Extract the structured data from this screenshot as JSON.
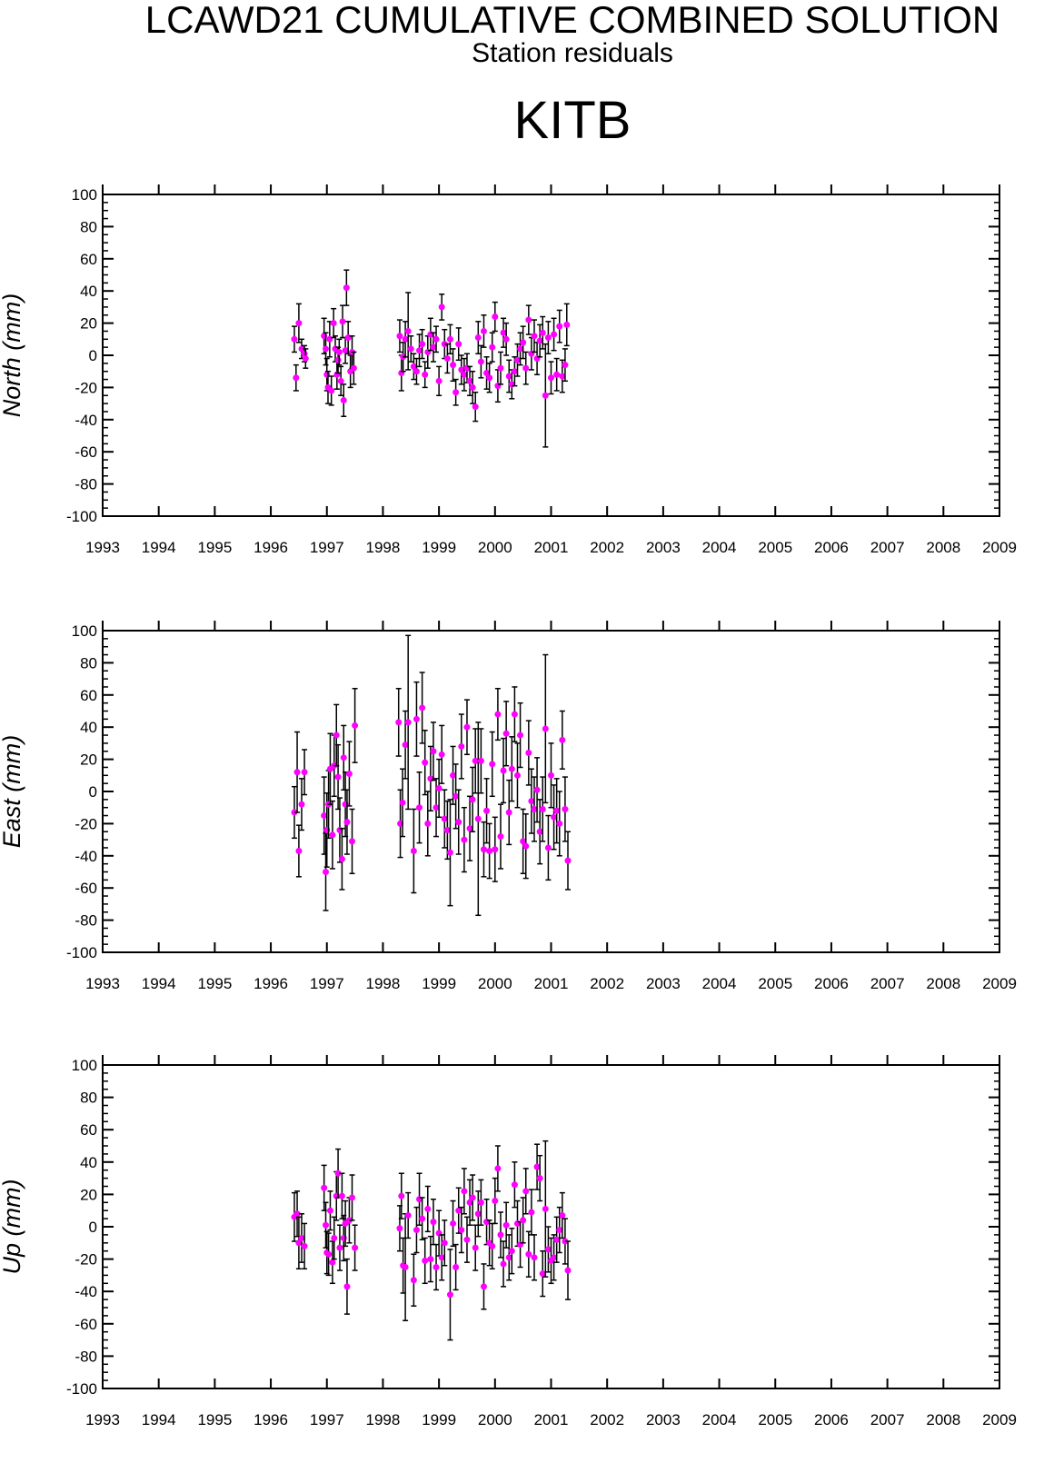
{
  "header": {
    "title": "LCAWD21 CUMULATIVE COMBINED SOLUTION",
    "subtitle": "Station residuals",
    "station": "KITB"
  },
  "colors": {
    "marker": "#ff00ff",
    "errorbar": "#000000",
    "axes": "#000000"
  },
  "chart_data": [
    {
      "type": "scatter",
      "ylabel": "North (mm)",
      "xlim": [
        1993,
        2009
      ],
      "ylim": [
        -100,
        100
      ],
      "x_ticks": [
        "1993",
        "1994",
        "1995",
        "1996",
        "1997",
        "1998",
        "1999",
        "2000",
        "2001",
        "2002",
        "2003",
        "2004",
        "2005",
        "2006",
        "2007",
        "2008",
        "2009"
      ],
      "y_ticks": [
        "100",
        "80",
        "60",
        "40",
        "20",
        "0",
        "-20",
        "-40",
        "-60",
        "-80",
        "-100"
      ],
      "grid": false,
      "error_bars": true,
      "points": [
        [
          1996.42,
          10,
          8
        ],
        [
          1996.45,
          -14,
          8
        ],
        [
          1996.5,
          20,
          12
        ],
        [
          1996.55,
          4,
          6
        ],
        [
          1996.6,
          1,
          5
        ],
        [
          1996.62,
          -2,
          6
        ],
        [
          1996.95,
          12,
          11
        ],
        [
          1996.98,
          4,
          10
        ],
        [
          1997.0,
          -12,
          10
        ],
        [
          1997.02,
          -20,
          10
        ],
        [
          1997.05,
          10,
          11
        ],
        [
          1997.08,
          -22,
          9
        ],
        [
          1997.12,
          20,
          9
        ],
        [
          1997.15,
          4,
          8
        ],
        [
          1997.18,
          -12,
          9
        ],
        [
          1997.2,
          -3,
          8
        ],
        [
          1997.22,
          2,
          8
        ],
        [
          1997.25,
          -16,
          9
        ],
        [
          1997.28,
          21,
          10
        ],
        [
          1997.3,
          -28,
          10
        ],
        [
          1997.33,
          3,
          8
        ],
        [
          1997.35,
          42,
          11
        ],
        [
          1997.38,
          11,
          10
        ],
        [
          1997.42,
          -10,
          10
        ],
        [
          1997.45,
          2,
          10
        ],
        [
          1997.48,
          -8,
          10
        ],
        [
          1998.3,
          12,
          10
        ],
        [
          1998.33,
          -11,
          11
        ],
        [
          1998.36,
          -1,
          9
        ],
        [
          1998.4,
          10,
          11
        ],
        [
          1998.45,
          15,
          24
        ],
        [
          1998.5,
          4,
          8
        ],
        [
          1998.55,
          -7,
          8
        ],
        [
          1998.6,
          -10,
          8
        ],
        [
          1998.65,
          3,
          10
        ],
        [
          1998.7,
          7,
          9
        ],
        [
          1998.75,
          -12,
          8
        ],
        [
          1998.8,
          2,
          10
        ],
        [
          1998.85,
          13,
          10
        ],
        [
          1998.9,
          5,
          9
        ],
        [
          1998.95,
          10,
          8
        ],
        [
          1999.0,
          -16,
          9
        ],
        [
          1999.05,
          30,
          8
        ],
        [
          1999.1,
          7,
          9
        ],
        [
          1999.15,
          -2,
          9
        ],
        [
          1999.2,
          10,
          9
        ],
        [
          1999.25,
          -6,
          10
        ],
        [
          1999.3,
          -23,
          8
        ],
        [
          1999.35,
          7,
          10
        ],
        [
          1999.4,
          -9,
          9
        ],
        [
          1999.45,
          -12,
          10
        ],
        [
          1999.5,
          -8,
          9
        ],
        [
          1999.55,
          -16,
          9
        ],
        [
          1999.6,
          -20,
          10
        ],
        [
          1999.65,
          -32,
          9
        ],
        [
          1999.7,
          11,
          10
        ],
        [
          1999.75,
          -4,
          10
        ],
        [
          1999.8,
          15,
          10
        ],
        [
          1999.85,
          -11,
          10
        ],
        [
          1999.9,
          -14,
          9
        ],
        [
          1999.95,
          5,
          9
        ],
        [
          2000.0,
          24,
          9
        ],
        [
          2000.05,
          -19,
          10
        ],
        [
          2000.1,
          -8,
          10
        ],
        [
          2000.15,
          14,
          9
        ],
        [
          2000.2,
          10,
          10
        ],
        [
          2000.25,
          -13,
          10
        ],
        [
          2000.3,
          -18,
          9
        ],
        [
          2000.35,
          -10,
          9
        ],
        [
          2000.4,
          -3,
          10
        ],
        [
          2000.45,
          4,
          10
        ],
        [
          2000.5,
          8,
          10
        ],
        [
          2000.55,
          -8,
          10
        ],
        [
          2000.6,
          22,
          9
        ],
        [
          2000.65,
          1,
          10
        ],
        [
          2000.7,
          12,
          10
        ],
        [
          2000.75,
          -2,
          10
        ],
        [
          2000.8,
          9,
          10
        ],
        [
          2000.85,
          14,
          10
        ],
        [
          2000.9,
          -25,
          32
        ],
        [
          2000.95,
          11,
          10
        ],
        [
          2001.0,
          -14,
          10
        ],
        [
          2001.05,
          13,
          10
        ],
        [
          2001.1,
          -12,
          10
        ],
        [
          2001.15,
          18,
          10
        ],
        [
          2001.2,
          -13,
          10
        ],
        [
          2001.25,
          -6,
          10
        ],
        [
          2001.28,
          19,
          13
        ]
      ]
    },
    {
      "type": "scatter",
      "ylabel": "East (mm)",
      "xlim": [
        1993,
        2009
      ],
      "ylim": [
        -100,
        100
      ],
      "x_ticks": [
        "1993",
        "1994",
        "1995",
        "1996",
        "1997",
        "1998",
        "1999",
        "2000",
        "2001",
        "2002",
        "2003",
        "2004",
        "2005",
        "2006",
        "2007",
        "2008",
        "2009"
      ],
      "y_ticks": [
        "100",
        "80",
        "60",
        "40",
        "20",
        "0",
        "-20",
        "-40",
        "-60",
        "-80",
        "-100"
      ],
      "grid": false,
      "error_bars": true,
      "points": [
        [
          1996.42,
          -13,
          16
        ],
        [
          1996.47,
          12,
          25
        ],
        [
          1996.5,
          -37,
          16
        ],
        [
          1996.55,
          -8,
          16
        ],
        [
          1996.6,
          12,
          14
        ],
        [
          1996.95,
          -15,
          24
        ],
        [
          1996.98,
          -50,
          24
        ],
        [
          1997.0,
          -24,
          23
        ],
        [
          1997.03,
          -8,
          21
        ],
        [
          1997.06,
          14,
          22
        ],
        [
          1997.1,
          -27,
          21
        ],
        [
          1997.13,
          16,
          19
        ],
        [
          1997.17,
          35,
          19
        ],
        [
          1997.2,
          9,
          20
        ],
        [
          1997.23,
          -24,
          20
        ],
        [
          1997.27,
          -42,
          19
        ],
        [
          1997.3,
          21,
          20
        ],
        [
          1997.33,
          -8,
          20
        ],
        [
          1997.36,
          -19,
          20
        ],
        [
          1997.4,
          11,
          20
        ],
        [
          1997.45,
          -31,
          20
        ],
        [
          1997.5,
          41,
          23
        ],
        [
          1998.28,
          43,
          21
        ],
        [
          1998.31,
          -20,
          21
        ],
        [
          1998.35,
          -7,
          21
        ],
        [
          1998.4,
          29,
          21
        ],
        [
          1998.45,
          43,
          54
        ],
        [
          1998.55,
          -37,
          26
        ],
        [
          1998.6,
          45,
          23
        ],
        [
          1998.65,
          -10,
          22
        ],
        [
          1998.7,
          52,
          22
        ],
        [
          1998.75,
          18,
          20
        ],
        [
          1998.8,
          -20,
          20
        ],
        [
          1998.85,
          8,
          20
        ],
        [
          1998.9,
          25,
          18
        ],
        [
          1998.95,
          -10,
          18
        ],
        [
          1999.0,
          2,
          18
        ],
        [
          1999.05,
          23,
          18
        ],
        [
          1999.1,
          -17,
          18
        ],
        [
          1999.15,
          -24,
          18
        ],
        [
          1999.2,
          -38,
          33
        ],
        [
          1999.25,
          10,
          18
        ],
        [
          1999.3,
          -3,
          20
        ],
        [
          1999.35,
          -19,
          20
        ],
        [
          1999.4,
          28,
          20
        ],
        [
          1999.45,
          -30,
          20
        ],
        [
          1999.5,
          40,
          17
        ],
        [
          1999.55,
          -23,
          20
        ],
        [
          1999.6,
          -5,
          20
        ],
        [
          1999.65,
          19,
          20
        ],
        [
          1999.7,
          -17,
          60
        ],
        [
          1999.75,
          19,
          20
        ],
        [
          1999.8,
          -36,
          17
        ],
        [
          1999.85,
          -12,
          20
        ],
        [
          1999.9,
          -37,
          17
        ],
        [
          1999.95,
          17,
          20
        ],
        [
          2000.0,
          -36,
          20
        ],
        [
          2000.05,
          48,
          16
        ],
        [
          2000.1,
          -28,
          20
        ],
        [
          2000.15,
          13,
          20
        ],
        [
          2000.2,
          36,
          20
        ],
        [
          2000.25,
          -13,
          20
        ],
        [
          2000.3,
          14,
          20
        ],
        [
          2000.35,
          48,
          17
        ],
        [
          2000.4,
          10,
          20
        ],
        [
          2000.45,
          35,
          20
        ],
        [
          2000.5,
          -31,
          20
        ],
        [
          2000.55,
          -34,
          20
        ],
        [
          2000.6,
          24,
          20
        ],
        [
          2000.65,
          -6,
          20
        ],
        [
          2000.7,
          -11,
          20
        ],
        [
          2000.75,
          1,
          20
        ],
        [
          2000.8,
          -25,
          20
        ],
        [
          2000.85,
          -11,
          20
        ],
        [
          2000.9,
          39,
          46
        ],
        [
          2000.95,
          -35,
          20
        ],
        [
          2001.0,
          10,
          20
        ],
        [
          2001.05,
          -16,
          20
        ],
        [
          2001.1,
          -12,
          20
        ],
        [
          2001.15,
          -20,
          20
        ],
        [
          2001.2,
          32,
          18
        ],
        [
          2001.25,
          -11,
          20
        ],
        [
          2001.3,
          -43,
          18
        ]
      ]
    },
    {
      "type": "scatter",
      "ylabel": "Up (mm)",
      "xlim": [
        1993,
        2009
      ],
      "ylim": [
        -100,
        100
      ],
      "x_ticks": [
        "1993",
        "1994",
        "1995",
        "1996",
        "1997",
        "1998",
        "1999",
        "2000",
        "2001",
        "2002",
        "2003",
        "2004",
        "2005",
        "2006",
        "2007",
        "2008",
        "2009"
      ],
      "y_ticks": [
        "100",
        "80",
        "60",
        "40",
        "20",
        "0",
        "-20",
        "-40",
        "-60",
        "-80",
        "-100"
      ],
      "grid": false,
      "error_bars": true,
      "points": [
        [
          1996.42,
          6,
          15
        ],
        [
          1996.47,
          8,
          14
        ],
        [
          1996.5,
          -10,
          16
        ],
        [
          1996.55,
          -7,
          15
        ],
        [
          1996.6,
          -12,
          14
        ],
        [
          1996.95,
          24,
          14
        ],
        [
          1996.98,
          1,
          14
        ],
        [
          1997.0,
          -16,
          13
        ],
        [
          1997.03,
          -17,
          13
        ],
        [
          1997.06,
          10,
          12
        ],
        [
          1997.1,
          -22,
          13
        ],
        [
          1997.13,
          -7,
          13
        ],
        [
          1997.17,
          19,
          15
        ],
        [
          1997.2,
          33,
          15
        ],
        [
          1997.23,
          -13,
          14
        ],
        [
          1997.27,
          19,
          14
        ],
        [
          1997.3,
          -7,
          14
        ],
        [
          1997.33,
          2,
          14
        ],
        [
          1997.36,
          -37,
          17
        ],
        [
          1997.4,
          4,
          14
        ],
        [
          1997.45,
          18,
          14
        ],
        [
          1997.5,
          -13,
          14
        ],
        [
          1998.3,
          -1,
          14
        ],
        [
          1998.33,
          19,
          14
        ],
        [
          1998.36,
          -24,
          17
        ],
        [
          1998.4,
          -25,
          33
        ],
        [
          1998.45,
          7,
          14
        ],
        [
          1998.55,
          -33,
          16
        ],
        [
          1998.6,
          -2,
          14
        ],
        [
          1998.65,
          17,
          16
        ],
        [
          1998.7,
          5,
          13
        ],
        [
          1998.75,
          -21,
          14
        ],
        [
          1998.8,
          11,
          14
        ],
        [
          1998.85,
          -20,
          14
        ],
        [
          1998.9,
          3,
          14
        ],
        [
          1998.95,
          -25,
          14
        ],
        [
          1999.0,
          -4,
          14
        ],
        [
          1999.05,
          -19,
          14
        ],
        [
          1999.1,
          -10,
          14
        ],
        [
          1999.2,
          -42,
          28
        ],
        [
          1999.25,
          2,
          14
        ],
        [
          1999.3,
          -25,
          14
        ],
        [
          1999.35,
          10,
          14
        ],
        [
          1999.4,
          -2,
          14
        ],
        [
          1999.45,
          22,
          14
        ],
        [
          1999.5,
          -8,
          14
        ],
        [
          1999.55,
          15,
          14
        ],
        [
          1999.6,
          18,
          14
        ],
        [
          1999.65,
          -13,
          14
        ],
        [
          1999.7,
          8,
          14
        ],
        [
          1999.75,
          15,
          14
        ],
        [
          1999.8,
          -37,
          14
        ],
        [
          1999.85,
          3,
          14
        ],
        [
          1999.9,
          -10,
          14
        ],
        [
          1999.95,
          -12,
          14
        ],
        [
          2000.0,
          16,
          14
        ],
        [
          2000.05,
          36,
          14
        ],
        [
          2000.1,
          -5,
          14
        ],
        [
          2000.15,
          -23,
          14
        ],
        [
          2000.2,
          1,
          14
        ],
        [
          2000.25,
          -19,
          14
        ],
        [
          2000.3,
          -15,
          14
        ],
        [
          2000.35,
          26,
          14
        ],
        [
          2000.4,
          2,
          14
        ],
        [
          2000.45,
          -11,
          14
        ],
        [
          2000.5,
          4,
          14
        ],
        [
          2000.55,
          22,
          14
        ],
        [
          2000.6,
          -17,
          14
        ],
        [
          2000.65,
          9,
          14
        ],
        [
          2000.7,
          -19,
          14
        ],
        [
          2000.75,
          37,
          14
        ],
        [
          2000.8,
          30,
          14
        ],
        [
          2000.85,
          -29,
          14
        ],
        [
          2000.9,
          11,
          42
        ],
        [
          2000.95,
          -14,
          14
        ],
        [
          2001.0,
          -21,
          14
        ],
        [
          2001.05,
          -19,
          14
        ],
        [
          2001.1,
          -8,
          14
        ],
        [
          2001.15,
          -2,
          14
        ],
        [
          2001.2,
          7,
          14
        ],
        [
          2001.25,
          -9,
          14
        ],
        [
          2001.3,
          -27,
          18
        ]
      ]
    }
  ]
}
